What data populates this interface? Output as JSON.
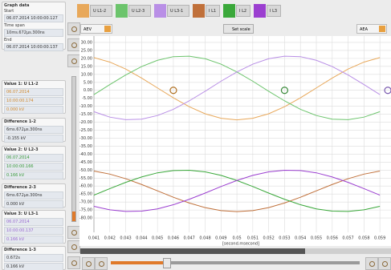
{
  "sidebar": {
    "graph": {
      "title": "Graph data",
      "start_label": "Start",
      "start": "06.07.2014 10:00:00.127",
      "span_label": "Time span",
      "span": "10ms.672µs.300ns",
      "end_label": "End",
      "end": "06.07.2014 10:00:00.137"
    },
    "value1": {
      "title": "Value 1: U L1-2",
      "date": "06.07.2014",
      "time": "10:00:00.174",
      "value": "0.000 kV"
    },
    "diff12": {
      "title": "Difference 1-2",
      "span": "6ms.672µs.300ns",
      "value": "-0.155 kV"
    },
    "value2": {
      "title": "Value 2: U L2-3",
      "date": "06.07.2014",
      "time": "10:00:00.166",
      "value": "0.166 kV"
    },
    "diff23": {
      "title": "Difference 2-3",
      "span": "6ms.672µs.300ns",
      "value": "0.000 kV"
    },
    "value3": {
      "title": "Value 3: U L3-1",
      "date": "06.07.2014",
      "time": "10:00:00.137",
      "value": "0.166 kV"
    },
    "diff13": {
      "title": "Difference 1-3",
      "span": "0.672s",
      "value": "0.166 kV"
    }
  },
  "toolbar": {
    "left_unit": "AEV",
    "set_scale": "Set scale",
    "right_unit": "AEA"
  },
  "chart_data": {
    "type": "line",
    "xlabel": "[second.msecond]",
    "x": [
      0.041,
      0.042,
      0.043,
      0.044,
      0.045,
      0.046,
      0.047,
      0.048,
      0.049,
      0.05,
      0.051,
      0.052,
      0.053,
      0.054,
      0.055,
      0.056,
      0.057,
      0.058,
      0.059
    ],
    "xlim": [
      0.041,
      0.0597
    ],
    "ylim": [
      -89,
      34
    ],
    "xticks": [
      0.041,
      0.042,
      0.043,
      0.044,
      0.045,
      0.046,
      0.047,
      0.048,
      0.049,
      0.05,
      0.051,
      0.052,
      0.053,
      0.054,
      0.055,
      0.056,
      0.057,
      0.058,
      0.059
    ],
    "yticks": [
      {
        "value": 30,
        "label": "30.00"
      },
      {
        "value": 25,
        "label": "25.00"
      },
      {
        "value": 20,
        "label": "20.00"
      },
      {
        "value": 15,
        "label": "15.00"
      },
      {
        "value": 10,
        "label": "10.00"
      },
      {
        "value": 5,
        "label": "5.00"
      },
      {
        "value": 0,
        "label": "0.00"
      },
      {
        "value": -5,
        "label": "-5.00"
      },
      {
        "value": -10,
        "label": "-10.00"
      },
      {
        "value": -15,
        "label": "-15.00"
      },
      {
        "value": -20,
        "label": "-20.00"
      },
      {
        "value": -25,
        "label": "-25.00"
      },
      {
        "value": -30,
        "label": "-30.00"
      },
      {
        "value": -35,
        "label": "-35.00"
      },
      {
        "value": -40,
        "label": "-40.00"
      },
      {
        "value": -45,
        "label": "-45.00"
      },
      {
        "value": -50,
        "label": "-50.00"
      },
      {
        "value": -55,
        "label": "-55.00"
      },
      {
        "value": -60,
        "label": "-60.00"
      },
      {
        "value": -65,
        "label": "-65.00"
      },
      {
        "value": -70,
        "label": "-70.00"
      },
      {
        "value": -75,
        "label": "-75.00"
      },
      {
        "value": -80,
        "label": "-80.00"
      }
    ],
    "grid": true,
    "series": [
      {
        "name": "U L1-2",
        "color": "#e8a85a",
        "values": [
          20.5,
          17.7,
          13.3,
          7.7,
          1.5,
          -4.7,
          -10.3,
          -14.7,
          -17.5,
          -18.5,
          -17.5,
          -14.7,
          -10.3,
          -4.7,
          1.5,
          7.7,
          13.3,
          17.7,
          20.5
        ]
      },
      {
        "name": "U L2-3",
        "color": "#6cc46c",
        "values": [
          -2.7,
          3.6,
          9.6,
          14.9,
          18.8,
          21.1,
          21.4,
          19.8,
          16.4,
          11.5,
          5.7,
          -0.6,
          -6.6,
          -11.9,
          -15.8,
          -18.1,
          -18.4,
          -16.8,
          -13.4
        ]
      },
      {
        "name": "U L3-1",
        "color": "#b98fe6",
        "values": [
          -13.4,
          -16.8,
          -18.4,
          -18.1,
          -15.8,
          -11.9,
          -6.6,
          -0.6,
          5.7,
          11.5,
          16.4,
          19.8,
          21.4,
          21.1,
          18.8,
          14.9,
          9.6,
          3.6,
          -2.7
        ]
      },
      {
        "name": "I L1",
        "color": "#c0703a",
        "values": [
          -50.6,
          -52.5,
          -55.4,
          -59.0,
          -63.0,
          -67.0,
          -70.6,
          -73.5,
          -75.4,
          -76.0,
          -75.4,
          -73.5,
          -70.6,
          -67.0,
          -63.0,
          -59.0,
          -55.4,
          -52.5,
          -50.6
        ]
      },
      {
        "name": "I L2",
        "color": "#3aa83a",
        "values": [
          -65.7,
          -61.6,
          -57.7,
          -54.3,
          -51.7,
          -50.3,
          -50.1,
          -51.1,
          -53.3,
          -56.5,
          -60.3,
          -64.4,
          -68.3,
          -71.7,
          -74.3,
          -75.7,
          -75.9,
          -74.9,
          -72.7
        ]
      },
      {
        "name": "I L3",
        "color": "#9b3fd0",
        "values": [
          -72.7,
          -74.9,
          -75.9,
          -75.7,
          -74.3,
          -71.7,
          -68.3,
          -64.4,
          -60.3,
          -56.5,
          -53.3,
          -51.1,
          -50.1,
          -50.3,
          -51.7,
          -54.3,
          -57.7,
          -61.6,
          -65.7
        ]
      }
    ],
    "cursors": [
      {
        "x": 0.046,
        "y": 0,
        "color": "#b07020"
      },
      {
        "x": 0.053,
        "y": 0,
        "color": "#3a8a3a"
      },
      {
        "x": 0.0595,
        "y": 0,
        "color": "#7a5ab0"
      }
    ]
  }
}
